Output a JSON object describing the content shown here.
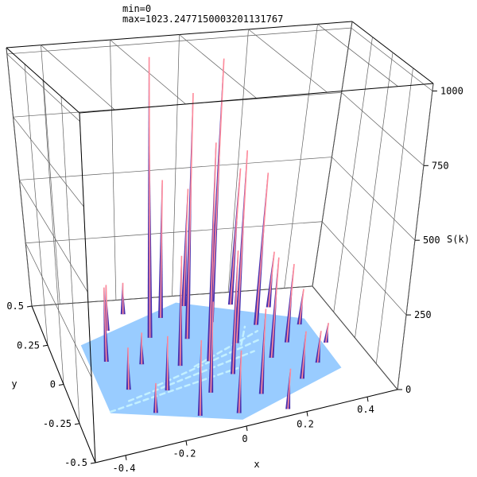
{
  "header": {
    "min_line": "min=0",
    "max_line": "max=1023.2477150003201131767"
  },
  "colors": {
    "floor": "#99ccff",
    "stripe": "#c8f4ff",
    "spike_red": "#ff8a9a",
    "spike_blue": "#4a33b0",
    "box": "#000000",
    "grid": "#606060"
  },
  "chart_data": {
    "type": "surface3d",
    "title": "",
    "xlabel": "x",
    "ylabel": "y",
    "zlabel": "S(k)",
    "xlim": [
      -0.5,
      0.5
    ],
    "ylim": [
      -0.5,
      0.5
    ],
    "zlim": [
      0,
      1025
    ],
    "x_ticks": [
      -0.4,
      -0.2,
      0,
      0.2,
      0.4
    ],
    "y_ticks": [
      -0.5,
      -0.25,
      0,
      0.25,
      0.5
    ],
    "z_ticks": [
      0,
      250,
      500,
      750,
      1000
    ],
    "x_tick_labels": [
      "-0.4",
      "-0.2",
      "0",
      "0.2",
      "0.4"
    ],
    "y_tick_labels": [
      "-0.5",
      "-0.25",
      "0",
      "0.25",
      "0.5"
    ],
    "z_tick_labels": [
      "0",
      "250",
      "500",
      "750",
      "1000"
    ],
    "domain_shape": "hexagon",
    "peaks": [
      {
        "x": -0.33,
        "y": 0.1,
        "z": 260
      },
      {
        "x": -0.3,
        "y": -0.1,
        "z": 140
      },
      {
        "x": -0.28,
        "y": 0.3,
        "z": 170
      },
      {
        "x": -0.25,
        "y": -0.28,
        "z": 95
      },
      {
        "x": -0.22,
        "y": 0.05,
        "z": 110
      },
      {
        "x": -0.2,
        "y": 0.4,
        "z": 120
      },
      {
        "x": -0.18,
        "y": -0.15,
        "z": 180
      },
      {
        "x": -0.15,
        "y": 0.22,
        "z": 1023
      },
      {
        "x": -0.12,
        "y": -0.36,
        "z": 240
      },
      {
        "x": -0.1,
        "y": 0.0,
        "z": 380
      },
      {
        "x": -0.08,
        "y": 0.35,
        "z": 520
      },
      {
        "x": -0.05,
        "y": -0.22,
        "z": 300
      },
      {
        "x": -0.03,
        "y": 0.18,
        "z": 890
      },
      {
        "x": 0.0,
        "y": -0.4,
        "z": 200
      },
      {
        "x": 0.0,
        "y": 0.0,
        "z": 760
      },
      {
        "x": 0.02,
        "y": 0.42,
        "z": 450
      },
      {
        "x": 0.05,
        "y": -0.12,
        "z": 420
      },
      {
        "x": 0.08,
        "y": 0.28,
        "z": 980
      },
      {
        "x": 0.1,
        "y": -0.3,
        "z": 280
      },
      {
        "x": 0.12,
        "y": 0.1,
        "z": 690
      },
      {
        "x": 0.15,
        "y": -0.45,
        "z": 130
      },
      {
        "x": 0.18,
        "y": 0.4,
        "z": 520
      },
      {
        "x": 0.2,
        "y": -0.05,
        "z": 350
      },
      {
        "x": 0.22,
        "y": 0.22,
        "z": 560
      },
      {
        "x": 0.25,
        "y": -0.25,
        "z": 160
      },
      {
        "x": 0.28,
        "y": 0.05,
        "z": 280
      },
      {
        "x": 0.3,
        "y": 0.35,
        "z": 210
      },
      {
        "x": 0.33,
        "y": -0.15,
        "z": 110
      },
      {
        "x": 0.36,
        "y": 0.18,
        "z": 130
      },
      {
        "x": 0.4,
        "y": 0.0,
        "z": 70
      }
    ]
  }
}
